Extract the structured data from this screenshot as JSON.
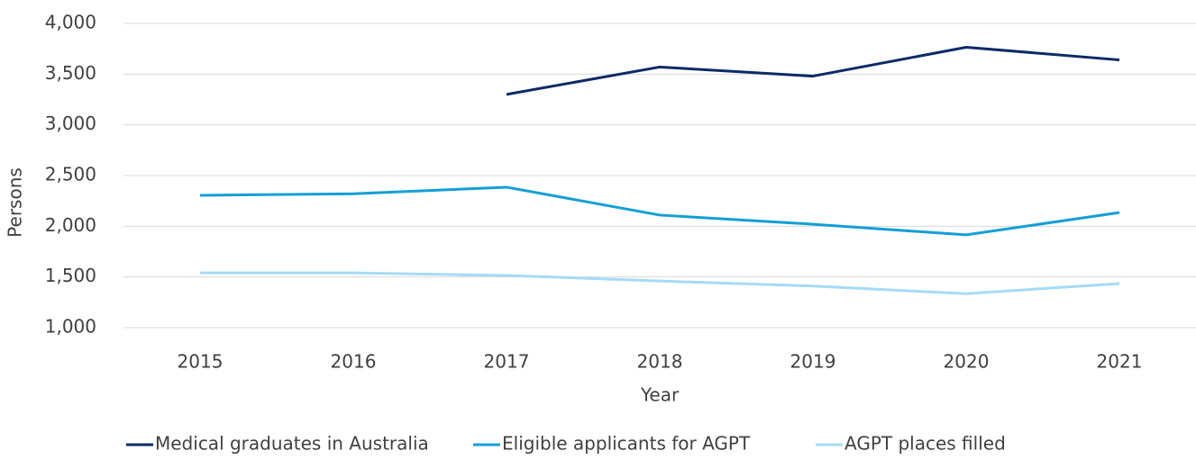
{
  "chart_data": {
    "type": "line",
    "x_label": "Year",
    "y_label": "Persons",
    "categories": [
      "2015",
      "2016",
      "2017",
      "2018",
      "2019",
      "2020",
      "2021"
    ],
    "series": [
      {
        "name": "Medical graduates in Australia",
        "color": "#0b2a68",
        "values": [
          null,
          null,
          3300,
          3570,
          3480,
          3765,
          3640
        ]
      },
      {
        "name": "Eligible applicants for AGPT",
        "color": "#139fd6",
        "values": [
          2305,
          2320,
          2385,
          2110,
          2020,
          1915,
          2135
        ]
      },
      {
        "name": "AGPT places filled",
        "color": "#a5dbf5",
        "values": [
          1540,
          1540,
          1515,
          1460,
          1410,
          1335,
          1435
        ]
      }
    ],
    "ylim": [
      1000,
      4000
    ],
    "yticks": [
      {
        "value": 1000,
        "label": "1,000"
      },
      {
        "value": 1500,
        "label": "1,500"
      },
      {
        "value": 2000,
        "label": "2,000"
      },
      {
        "value": 2500,
        "label": "2,500"
      },
      {
        "value": 3000,
        "label": "3,000"
      },
      {
        "value": 3500,
        "label": "3,500"
      },
      {
        "value": 4000,
        "label": "4,000"
      }
    ],
    "grid": true,
    "legend": "bottom"
  }
}
